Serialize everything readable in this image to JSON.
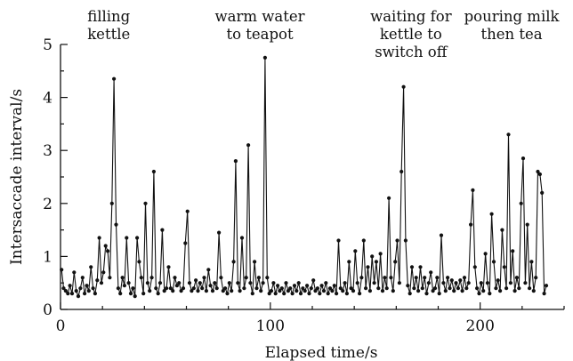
{
  "chart_data": {
    "type": "line",
    "title": "",
    "xlabel": "Elapsed time/s",
    "ylabel": "Intersaccade interval/s",
    "xlim": [
      0,
      240
    ],
    "ylim": [
      0,
      5
    ],
    "x_ticks": [
      0,
      100,
      200
    ],
    "y_ticks": [
      0,
      1,
      2,
      3,
      4,
      5
    ],
    "grid": false,
    "legend": "none",
    "annotations": [
      {
        "lines": [
          "filling",
          "kettle"
        ],
        "x": 23
      },
      {
        "lines": [
          "warm water",
          "to teapot"
        ],
        "x": 95
      },
      {
        "lines": [
          "waiting for",
          "kettle to",
          "switch off"
        ],
        "x": 167
      },
      {
        "lines": [
          "pouring milk",
          "then tea"
        ],
        "x": 215
      }
    ],
    "series": [
      {
        "points": [
          [
            0.5,
            0.75
          ],
          [
            1.5,
            0.4
          ],
          [
            2.5,
            0.35
          ],
          [
            3.5,
            0.3
          ],
          [
            4.5,
            0.45
          ],
          [
            5.5,
            0.3
          ],
          [
            6.5,
            0.7
          ],
          [
            7.5,
            0.35
          ],
          [
            8.5,
            0.25
          ],
          [
            9.5,
            0.4
          ],
          [
            10.5,
            0.6
          ],
          [
            11.5,
            0.3
          ],
          [
            12.5,
            0.45
          ],
          [
            13.5,
            0.35
          ],
          [
            14.5,
            0.8
          ],
          [
            15.5,
            0.4
          ],
          [
            16.5,
            0.3
          ],
          [
            17.5,
            0.55
          ],
          [
            18.5,
            1.35
          ],
          [
            19.5,
            0.5
          ],
          [
            20.5,
            0.7
          ],
          [
            21.5,
            1.2
          ],
          [
            22.5,
            1.1
          ],
          [
            23.5,
            0.6
          ],
          [
            24.5,
            2.0
          ],
          [
            25.5,
            4.35
          ],
          [
            26.5,
            1.6
          ],
          [
            27.5,
            0.4
          ],
          [
            28.5,
            0.3
          ],
          [
            29.5,
            0.6
          ],
          [
            30.5,
            0.45
          ],
          [
            31.5,
            1.35
          ],
          [
            32.5,
            0.5
          ],
          [
            33.5,
            0.3
          ],
          [
            34.5,
            0.4
          ],
          [
            35.5,
            0.25
          ],
          [
            36.5,
            1.35
          ],
          [
            37.5,
            0.9
          ],
          [
            38.5,
            0.6
          ],
          [
            39.5,
            0.3
          ],
          [
            40.5,
            2.0
          ],
          [
            41.5,
            0.5
          ],
          [
            42.5,
            0.35
          ],
          [
            43.5,
            0.6
          ],
          [
            44.5,
            2.6
          ],
          [
            45.5,
            0.4
          ],
          [
            46.5,
            0.3
          ],
          [
            47.5,
            0.5
          ],
          [
            48.5,
            1.5
          ],
          [
            49.5,
            0.35
          ],
          [
            50.5,
            0.4
          ],
          [
            51.5,
            0.8
          ],
          [
            52.5,
            0.4
          ],
          [
            53.5,
            0.35
          ],
          [
            54.5,
            0.6
          ],
          [
            55.5,
            0.45
          ],
          [
            56.5,
            0.5
          ],
          [
            57.5,
            0.35
          ],
          [
            58.5,
            0.4
          ],
          [
            59.5,
            1.25
          ],
          [
            60.5,
            1.85
          ],
          [
            61.5,
            0.5
          ],
          [
            62.5,
            0.35
          ],
          [
            63.5,
            0.4
          ],
          [
            64.5,
            0.55
          ],
          [
            65.5,
            0.35
          ],
          [
            66.5,
            0.5
          ],
          [
            67.5,
            0.4
          ],
          [
            68.5,
            0.6
          ],
          [
            69.5,
            0.35
          ],
          [
            70.5,
            0.75
          ],
          [
            71.5,
            0.45
          ],
          [
            72.5,
            0.35
          ],
          [
            73.5,
            0.5
          ],
          [
            74.5,
            0.4
          ],
          [
            75.5,
            1.45
          ],
          [
            76.5,
            0.6
          ],
          [
            77.5,
            0.35
          ],
          [
            78.5,
            0.4
          ],
          [
            79.5,
            0.3
          ],
          [
            80.5,
            0.5
          ],
          [
            81.5,
            0.35
          ],
          [
            82.5,
            0.9
          ],
          [
            83.5,
            2.8
          ],
          [
            84.5,
            0.5
          ],
          [
            85.5,
            0.35
          ],
          [
            86.5,
            1.35
          ],
          [
            87.5,
            0.4
          ],
          [
            88.5,
            0.6
          ],
          [
            89.5,
            3.1
          ],
          [
            90.5,
            0.5
          ],
          [
            91.5,
            0.3
          ],
          [
            92.5,
            0.9
          ],
          [
            93.5,
            0.4
          ],
          [
            94.5,
            0.6
          ],
          [
            95.5,
            0.35
          ],
          [
            96.5,
            0.5
          ],
          [
            97.5,
            4.75
          ],
          [
            98.5,
            0.6
          ],
          [
            99.5,
            0.3
          ],
          [
            100.5,
            0.35
          ],
          [
            101.5,
            0.5
          ],
          [
            102.5,
            0.3
          ],
          [
            103.5,
            0.45
          ],
          [
            104.5,
            0.35
          ],
          [
            105.5,
            0.4
          ],
          [
            106.5,
            0.3
          ],
          [
            107.5,
            0.5
          ],
          [
            108.5,
            0.35
          ],
          [
            109.5,
            0.4
          ],
          [
            110.5,
            0.3
          ],
          [
            111.5,
            0.45
          ],
          [
            112.5,
            0.35
          ],
          [
            113.5,
            0.5
          ],
          [
            114.5,
            0.3
          ],
          [
            115.5,
            0.4
          ],
          [
            116.5,
            0.35
          ],
          [
            117.5,
            0.45
          ],
          [
            118.5,
            0.3
          ],
          [
            119.5,
            0.4
          ],
          [
            120.5,
            0.55
          ],
          [
            121.5,
            0.35
          ],
          [
            122.5,
            0.4
          ],
          [
            123.5,
            0.3
          ],
          [
            124.5,
            0.45
          ],
          [
            125.5,
            0.35
          ],
          [
            126.5,
            0.5
          ],
          [
            127.5,
            0.3
          ],
          [
            128.5,
            0.4
          ],
          [
            129.5,
            0.35
          ],
          [
            130.5,
            0.45
          ],
          [
            131.5,
            0.3
          ],
          [
            132.5,
            1.3
          ],
          [
            133.5,
            0.4
          ],
          [
            134.5,
            0.35
          ],
          [
            135.5,
            0.5
          ],
          [
            136.5,
            0.3
          ],
          [
            137.5,
            0.9
          ],
          [
            138.5,
            0.4
          ],
          [
            139.5,
            0.35
          ],
          [
            140.5,
            1.1
          ],
          [
            141.5,
            0.5
          ],
          [
            142.5,
            0.3
          ],
          [
            143.5,
            0.6
          ],
          [
            144.5,
            1.3
          ],
          [
            145.5,
            0.4
          ],
          [
            146.5,
            0.8
          ],
          [
            147.5,
            0.35
          ],
          [
            148.5,
            1.0
          ],
          [
            149.5,
            0.5
          ],
          [
            150.5,
            0.9
          ],
          [
            151.5,
            0.4
          ],
          [
            152.5,
            1.05
          ],
          [
            153.5,
            0.35
          ],
          [
            154.5,
            0.6
          ],
          [
            155.5,
            0.4
          ],
          [
            156.5,
            2.1
          ],
          [
            157.5,
            0.6
          ],
          [
            158.5,
            0.35
          ],
          [
            159.5,
            0.9
          ],
          [
            160.5,
            1.3
          ],
          [
            161.5,
            0.5
          ],
          [
            162.5,
            2.6
          ],
          [
            163.5,
            4.2
          ],
          [
            164.5,
            1.3
          ],
          [
            165.5,
            0.45
          ],
          [
            166.5,
            0.3
          ],
          [
            167.5,
            0.8
          ],
          [
            168.5,
            0.4
          ],
          [
            169.5,
            0.6
          ],
          [
            170.5,
            0.35
          ],
          [
            171.5,
            0.8
          ],
          [
            172.5,
            0.4
          ],
          [
            173.5,
            0.6
          ],
          [
            174.5,
            0.3
          ],
          [
            175.5,
            0.5
          ],
          [
            176.5,
            0.7
          ],
          [
            177.5,
            0.35
          ],
          [
            178.5,
            0.4
          ],
          [
            179.5,
            0.6
          ],
          [
            180.5,
            0.3
          ],
          [
            181.5,
            1.4
          ],
          [
            182.5,
            0.5
          ],
          [
            183.5,
            0.35
          ],
          [
            184.5,
            0.6
          ],
          [
            185.5,
            0.4
          ],
          [
            186.5,
            0.55
          ],
          [
            187.5,
            0.35
          ],
          [
            188.5,
            0.5
          ],
          [
            189.5,
            0.4
          ],
          [
            190.5,
            0.55
          ],
          [
            191.5,
            0.35
          ],
          [
            192.5,
            0.6
          ],
          [
            193.5,
            0.4
          ],
          [
            194.5,
            0.5
          ],
          [
            195.5,
            1.6
          ],
          [
            196.5,
            2.25
          ],
          [
            197.5,
            0.8
          ],
          [
            198.5,
            0.4
          ],
          [
            199.5,
            0.3
          ],
          [
            200.5,
            0.5
          ],
          [
            201.5,
            0.35
          ],
          [
            202.5,
            1.05
          ],
          [
            203.5,
            0.5
          ],
          [
            204.5,
            0.3
          ],
          [
            205.5,
            1.8
          ],
          [
            206.5,
            0.9
          ],
          [
            207.5,
            0.4
          ],
          [
            208.5,
            0.55
          ],
          [
            209.5,
            0.35
          ],
          [
            210.5,
            1.5
          ],
          [
            211.5,
            0.8
          ],
          [
            212.5,
            0.4
          ],
          [
            213.5,
            3.3
          ],
          [
            214.5,
            0.5
          ],
          [
            215.5,
            1.1
          ],
          [
            216.5,
            0.35
          ],
          [
            217.5,
            0.6
          ],
          [
            218.5,
            0.4
          ],
          [
            219.5,
            2.0
          ],
          [
            220.5,
            2.85
          ],
          [
            221.5,
            0.5
          ],
          [
            222.5,
            1.6
          ],
          [
            223.5,
            0.4
          ],
          [
            224.5,
            0.9
          ],
          [
            225.5,
            0.35
          ],
          [
            226.5,
            0.6
          ],
          [
            227.5,
            2.6
          ],
          [
            228.5,
            2.55
          ],
          [
            229.5,
            2.2
          ],
          [
            230.5,
            0.3
          ],
          [
            231.5,
            0.45
          ]
        ]
      }
    ]
  }
}
